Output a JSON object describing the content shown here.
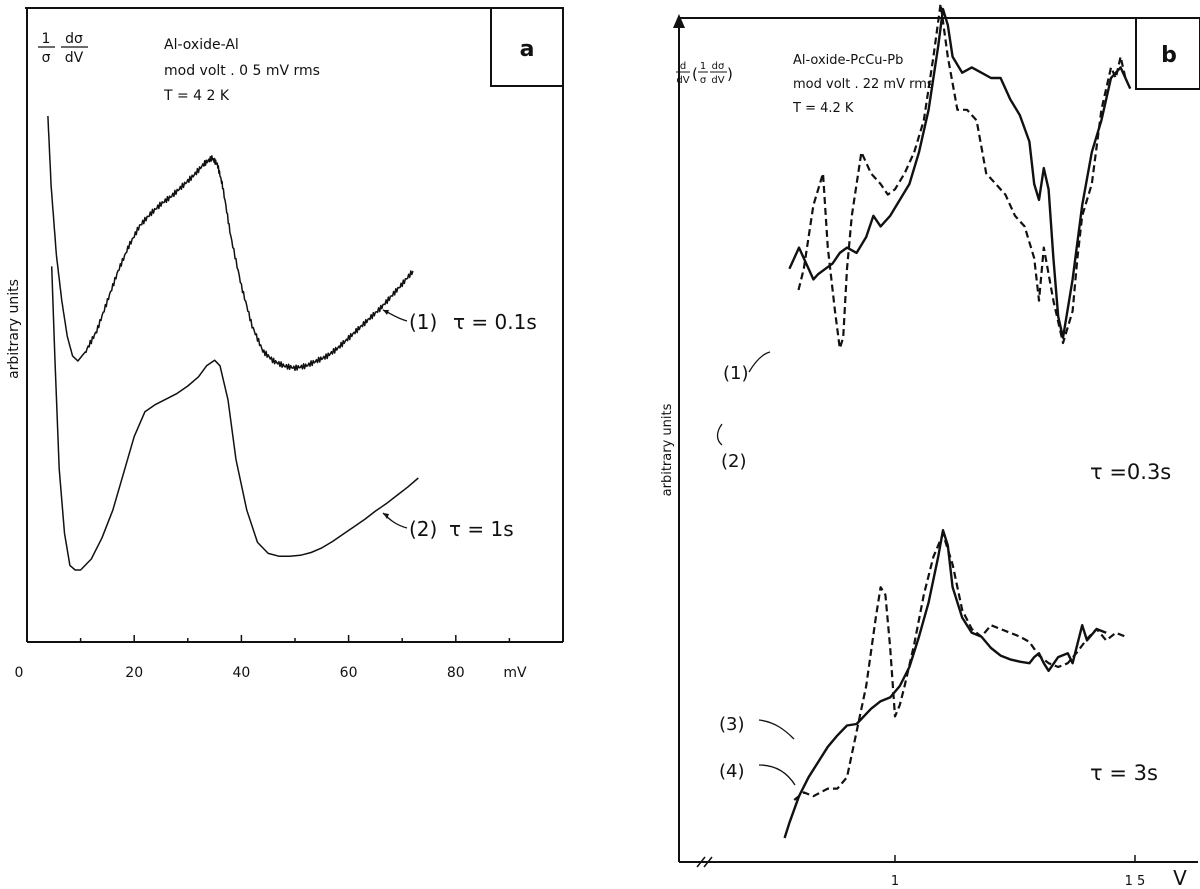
{
  "chart_data": [
    {
      "panel": "a",
      "type": "line",
      "ylabel_formula": {
        "num_left": "1",
        "den_left": "σ",
        "num_right": "dσ",
        "den_right": "dV"
      },
      "info": [
        "Al-oxide-Al",
        "mod  volt .  0 5 mV rms",
        "T = 4 2  K"
      ],
      "ylabel": "arbitrary   units",
      "xlabel": "mV",
      "xticks": [
        "0",
        "20",
        "40",
        "60",
        "80"
      ],
      "xlim": [
        0,
        100
      ],
      "grid": false,
      "series": [
        {
          "name": "(1) τ = 0.1s",
          "label": "(1)",
          "tau": "τ = 0.1s",
          "style": "noisy",
          "x": [
            3.9,
            4.5,
            5.5,
            6.5,
            7.5,
            8.5,
            9.5,
            11,
            13,
            15,
            17,
            19,
            21,
            23,
            25,
            27,
            29,
            31,
            33,
            34.5,
            35.5,
            36.5,
            38,
            40,
            42,
            44,
            46,
            48,
            50,
            52,
            54,
            56,
            58,
            60,
            62,
            64,
            66,
            68,
            70,
            72
          ],
          "y": [
            260,
            190,
            120,
            75,
            40,
            20,
            15,
            25,
            45,
            75,
            105,
            130,
            150,
            162,
            172,
            180,
            190,
            200,
            212,
            218,
            212,
            190,
            140,
            90,
            50,
            25,
            15,
            10,
            8,
            10,
            15,
            20,
            28,
            38,
            48,
            58,
            68,
            80,
            92,
            105
          ]
        },
        {
          "name": "(2) τ = 1s",
          "label": "(2)",
          "tau": "τ = 1s",
          "style": "smooth",
          "x": [
            4.6,
            5.2,
            6,
            7,
            8,
            9,
            10,
            12,
            14,
            16,
            18,
            20,
            22,
            24,
            26,
            28,
            30,
            32,
            33.5,
            35,
            36,
            37.5,
            39,
            41,
            43,
            45,
            47,
            49,
            51,
            53,
            55,
            57,
            59,
            61,
            63,
            65,
            67,
            69,
            71,
            73
          ],
          "y": [
            330,
            230,
            110,
            40,
            5,
            0,
            0,
            12,
            35,
            65,
            105,
            145,
            172,
            180,
            186,
            192,
            200,
            210,
            222,
            228,
            222,
            185,
            120,
            65,
            30,
            18,
            15,
            15,
            16,
            19,
            24,
            31,
            39,
            47,
            55,
            64,
            72,
            81,
            90,
            100
          ]
        }
      ]
    },
    {
      "panel": "b",
      "type": "line",
      "ylabel_formula": {
        "d_num": "d",
        "d_den": "dV",
        "num_left": "1",
        "den_left": "σ",
        "num_right": "dσ",
        "den_right": "dV"
      },
      "info": [
        "Al-oxide-PcCu-Pb",
        "mod  volt . 22 mV rms",
        "T = 4.2  K"
      ],
      "ylabel": "arbitrary   units",
      "xlabel": "V",
      "xticks": [
        "1",
        "1 5"
      ],
      "xtick_values": [
        1.0,
        1.5
      ],
      "xlim": [
        0.7,
        1.6
      ],
      "grid": false,
      "groups": [
        {
          "tau": "τ =0.3s",
          "series": [
            {
              "name": "(1)",
              "label": "(1)",
              "style": "dashed",
              "x": [
                0.799,
                0.81,
                0.83,
                0.85,
                0.86,
                0.875,
                0.885,
                0.892,
                0.9,
                0.91,
                0.93,
                0.95,
                0.97,
                0.985,
                1.0,
                1.02,
                1.04,
                1.06,
                1.08,
                1.095,
                1.11,
                1.13,
                1.15,
                1.17,
                1.19,
                1.21,
                1.23,
                1.25,
                1.27,
                1.29,
                1.3,
                1.31,
                1.33,
                1.35,
                1.37,
                1.38,
                1.39,
                1.41,
                1.43,
                1.45,
                1.46,
                1.47,
                1.48
              ],
              "y": [
                250,
                270,
                330,
                360,
                290,
                230,
                195,
                205,
                270,
                320,
                380,
                360,
                350,
                340,
                345,
                360,
                380,
                410,
                470,
                520,
                470,
                420,
                420,
                410,
                360,
                350,
                340,
                320,
                310,
                280,
                240,
                290,
                240,
                200,
                230,
                280,
                320,
                350,
                420,
                460,
                450,
                470,
                450
              ]
            },
            {
              "name": "(2)",
              "label": "(2)",
              "style": "solid",
              "x": [
                0.78,
                0.79,
                0.8,
                0.81,
                0.82,
                0.83,
                0.84,
                0.855,
                0.87,
                0.885,
                0.9,
                0.92,
                0.94,
                0.955,
                0.97,
                0.99,
                1.01,
                1.03,
                1.05,
                1.07,
                1.09,
                1.1,
                1.11,
                1.12,
                1.14,
                1.16,
                1.18,
                1.2,
                1.22,
                1.24,
                1.26,
                1.28,
                1.29,
                1.3,
                1.31,
                1.32,
                1.33,
                1.34,
                1.35,
                1.37,
                1.39,
                1.41,
                1.43,
                1.45,
                1.47,
                1.49
              ],
              "y": [
                270,
                280,
                290,
                280,
                270,
                260,
                265,
                270,
                275,
                285,
                290,
                285,
                300,
                320,
                310,
                320,
                335,
                350,
                380,
                420,
                480,
                515,
                500,
                470,
                455,
                460,
                455,
                450,
                450,
                430,
                415,
                390,
                350,
                335,
                365,
                345,
                280,
                225,
                205,
                260,
                330,
                380,
                410,
                450,
                460,
                440
              ]
            }
          ]
        },
        {
          "tau": "τ = 3s",
          "series": [
            {
              "name": "(3)",
              "label": "(3)",
              "style": "solid",
              "x": [
                0.77,
                0.78,
                0.8,
                0.82,
                0.84,
                0.86,
                0.88,
                0.9,
                0.92,
                0.95,
                0.97,
                0.99,
                1.01,
                1.03,
                1.05,
                1.07,
                1.09,
                1.1,
                1.11,
                1.12,
                1.14,
                1.16,
                1.18,
                1.2,
                1.22,
                1.24,
                1.26,
                1.28,
                1.29,
                1.3,
                1.31,
                1.32,
                1.34,
                1.36,
                1.37,
                1.38,
                1.39,
                1.4,
                1.42,
                1.44
              ],
              "y": [
                0,
                20,
                55,
                80,
                100,
                120,
                135,
                148,
                150,
                170,
                180,
                185,
                200,
                225,
                265,
                310,
                370,
                405,
                385,
                330,
                290,
                270,
                265,
                250,
                240,
                235,
                232,
                230,
                238,
                243,
                230,
                220,
                238,
                243,
                230,
                255,
                280,
                260,
                275,
                270
              ]
            },
            {
              "name": "(4)",
              "label": "(4)",
              "style": "dashed",
              "x": [
                0.79,
                0.81,
                0.83,
                0.86,
                0.88,
                0.9,
                0.92,
                0.94,
                0.96,
                0.97,
                0.98,
                0.99,
                1.0,
                1.01,
                1.02,
                1.04,
                1.06,
                1.08,
                1.1,
                1.12,
                1.14,
                1.16,
                1.18,
                1.2,
                1.22,
                1.24,
                1.26,
                1.28,
                1.3,
                1.32,
                1.34,
                1.36,
                1.38,
                1.4,
                1.42,
                1.44,
                1.46,
                1.48
              ],
              "y": [
                50,
                60,
                55,
                65,
                65,
                80,
                140,
                200,
                290,
                330,
                320,
                250,
                160,
                175,
                200,
                255,
                320,
                370,
                400,
                360,
                300,
                275,
                265,
                280,
                275,
                270,
                265,
                258,
                240,
                230,
                225,
                230,
                245,
                262,
                275,
                260,
                270,
                265
              ]
            }
          ]
        }
      ]
    }
  ]
}
